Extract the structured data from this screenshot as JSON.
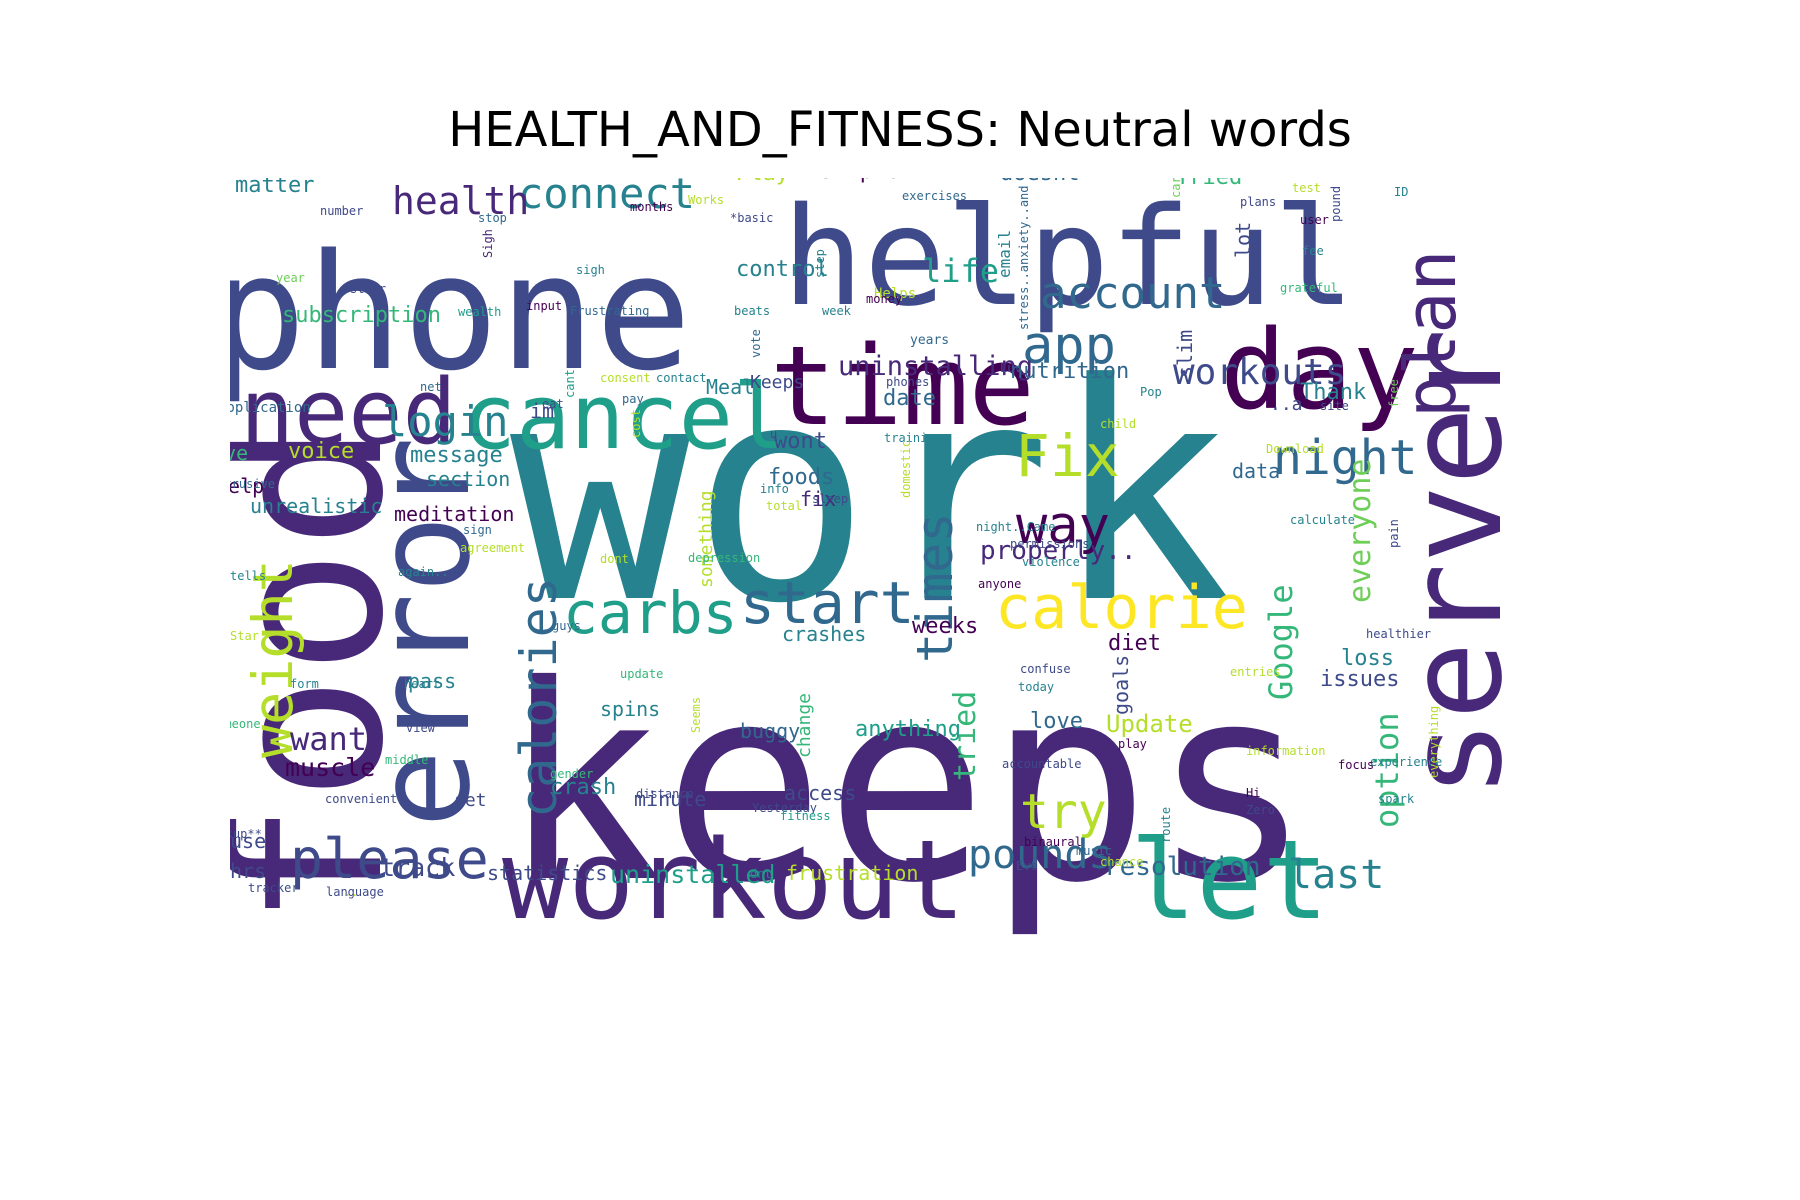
{
  "title": "HEALTH_AND_FITNESS: Neutral words",
  "colors": [
    "#440154",
    "#482878",
    "#3e4a89",
    "#31688e",
    "#26828e",
    "#1f9e89",
    "#35b779",
    "#6ece58",
    "#b5de2b",
    "#fde725"
  ],
  "words": [
    {
      "text": "work",
      "color": "#26828e"
    },
    {
      "text": "keeps",
      "color": "#482878"
    },
    {
      "text": "phone",
      "color": "#3e4a89"
    },
    {
      "text": "helpful",
      "color": "#3e4a89"
    },
    {
      "text": "food",
      "color": "#482878"
    },
    {
      "text": "error",
      "color": "#3e4a89"
    },
    {
      "text": "server",
      "color": "#482878"
    },
    {
      "text": "time",
      "color": "#440154"
    },
    {
      "text": "day",
      "color": "#440154"
    },
    {
      "text": "workout",
      "color": "#482878"
    },
    {
      "text": "need",
      "color": "#482878"
    },
    {
      "text": "cancel",
      "color": "#1f9e89"
    },
    {
      "text": "let",
      "color": "#1f9e89"
    },
    {
      "text": "plan",
      "color": "#482878"
    },
    {
      "text": "calorie",
      "color": "#fde725"
    },
    {
      "text": "carbs",
      "color": "#1f9e89"
    },
    {
      "text": "start",
      "color": "#31688e"
    },
    {
      "text": "weight",
      "color": "#b5de2b"
    },
    {
      "text": "please",
      "color": "#3e4a89"
    },
    {
      "text": "calories",
      "color": "#31688e"
    },
    {
      "text": "times",
      "color": "#31688e"
    },
    {
      "text": "Fix",
      "color": "#b5de2b"
    },
    {
      "text": "way",
      "color": "#440154"
    },
    {
      "text": "app",
      "color": "#31688e"
    },
    {
      "text": "account",
      "color": "#31688e"
    },
    {
      "text": "try",
      "color": "#b5de2b"
    },
    {
      "text": "night",
      "color": "#31688e"
    },
    {
      "text": "login",
      "color": "#26828e"
    },
    {
      "text": "connect",
      "color": "#26828e"
    },
    {
      "text": "health",
      "color": "#482878"
    },
    {
      "text": "workouts",
      "color": "#3e4a89"
    },
    {
      "text": "pounds",
      "color": "#31688e"
    },
    {
      "text": "last",
      "color": "#26828e"
    },
    {
      "text": "Google",
      "color": "#35b779"
    },
    {
      "text": "option",
      "color": "#35b779"
    },
    {
      "text": "everyone",
      "color": "#6ece58"
    },
    {
      "text": "tried",
      "color": "#35b779"
    },
    {
      "text": "life",
      "color": "#1f9e89"
    },
    {
      "text": "want",
      "color": "#482878"
    },
    {
      "text": "uninstalling",
      "color": "#482878"
    },
    {
      "text": "properly..",
      "color": "#482878"
    },
    {
      "text": "resolution",
      "color": "#31688e"
    },
    {
      "text": "uninstalled",
      "color": "#1f9e89"
    },
    {
      "text": "muscle",
      "color": "#440154"
    },
    {
      "text": "Update",
      "color": "#b5de2b"
    },
    {
      "text": "track",
      "color": "#3e4a89"
    },
    {
      "text": "subscription",
      "color": "#35b779"
    },
    {
      "text": "nutrition",
      "color": "#31688e"
    },
    {
      "text": "Thank",
      "color": "#26828e"
    },
    {
      "text": "crash",
      "color": "#26828e"
    },
    {
      "text": "statistics",
      "color": "#3e4a89"
    },
    {
      "text": "frustration",
      "color": "#b5de2b"
    },
    {
      "text": "goals",
      "color": "#3e4a89"
    },
    {
      "text": "loss",
      "color": "#26828e"
    },
    {
      "text": "issues",
      "color": "#3e4a89"
    },
    {
      "text": "data",
      "color": "#31688e"
    },
    {
      "text": "date",
      "color": "#31688e"
    },
    {
      "text": "Meal",
      "color": "#26828e"
    },
    {
      "text": "control",
      "color": "#26828e"
    },
    {
      "text": "simple",
      "color": "#440154"
    },
    {
      "text": "doesnt",
      "color": "#31688e"
    },
    {
      "text": "Tried",
      "color": "#35b779"
    },
    {
      "text": "Play",
      "color": "#b5de2b"
    },
    {
      "text": "matter",
      "color": "#26828e"
    },
    {
      "text": "message",
      "color": "#26828e"
    },
    {
      "text": "section",
      "color": "#26828e"
    },
    {
      "text": "voice",
      "color": "#b5de2b"
    },
    {
      "text": "meditation",
      "color": "#440154"
    },
    {
      "text": "unrealistic",
      "color": "#26828e"
    },
    {
      "text": "crashes",
      "color": "#26828e"
    },
    {
      "text": "weeks",
      "color": "#440154"
    },
    {
      "text": "diet",
      "color": "#440154"
    },
    {
      "text": "foods",
      "color": "#31688e"
    },
    {
      "text": "wont",
      "color": "#3e4a89"
    },
    {
      "text": "fix",
      "color": "#482878"
    },
    {
      "text": "anything",
      "color": "#1f9e89"
    },
    {
      "text": "love",
      "color": "#31688e"
    },
    {
      "text": "buggy",
      "color": "#31688e"
    },
    {
      "text": "spins",
      "color": "#26828e"
    },
    {
      "text": "pass",
      "color": "#26828e"
    },
    {
      "text": "access",
      "color": "#3e4a89"
    },
    {
      "text": "minute",
      "color": "#3e4a89"
    },
    {
      "text": "set",
      "color": "#3e4a89"
    },
    {
      "text": "use",
      "color": "#3e4a89"
    },
    {
      "text": "hrs",
      "color": "#3e4a89"
    },
    {
      "text": "save",
      "color": "#35b779"
    },
    {
      "text": "help",
      "color": "#440154"
    },
    {
      "text": "Please",
      "color": "#1f9e89"
    },
    {
      "text": "lot",
      "color": "#3e4a89"
    },
    {
      "text": "slim",
      "color": "#3e4a89"
    },
    {
      "text": "im",
      "color": "#3e4a89"
    },
    {
      "text": "Keeps",
      "color": "#3e4a89"
    },
    {
      "text": "change",
      "color": "#35b779"
    },
    {
      "text": "something",
      "color": "#b5de2b"
    },
    {
      "text": "email",
      "color": "#26828e"
    },
    {
      "text": "application",
      "color": "#31688e"
    },
    {
      "text": "Helps",
      "color": "#b5de2b"
    },
    {
      "text": "week",
      "color": "#26828e"
    },
    {
      "text": "years",
      "color": "#31688e"
    },
    {
      "text": "..a",
      "color": "#3e4a89"
    },
    {
      "text": "Help",
      "color": "#35b779"
    },
    {
      "text": "number",
      "color": "#3e4a89"
    },
    {
      "text": "stop",
      "color": "#31688e"
    },
    {
      "text": "year",
      "color": "#6ece58"
    },
    {
      "text": "starr",
      "color": "#3e4a89"
    },
    {
      "text": "Sigh",
      "color": "#482878"
    },
    {
      "text": "sigh",
      "color": "#26828e"
    },
    {
      "text": "months",
      "color": "#440154"
    },
    {
      "text": "Works",
      "color": "#b5de2b"
    },
    {
      "text": "*basic",
      "color": "#3e4a89"
    },
    {
      "text": "exercises",
      "color": "#31688e"
    },
    {
      "text": "stress..anxiety..and",
      "color": "#31688e"
    },
    {
      "text": "card",
      "color": "#6ece58"
    },
    {
      "text": "test",
      "color": "#b5de2b"
    },
    {
      "text": "plans",
      "color": "#3e4a89"
    },
    {
      "text": "user",
      "color": "#440154"
    },
    {
      "text": "pound",
      "color": "#3e4a89"
    },
    {
      "text": "ID",
      "color": "#26828e"
    },
    {
      "text": "fee",
      "color": "#26828e"
    },
    {
      "text": "grateful",
      "color": "#35b779"
    },
    {
      "text": "site",
      "color": "#3e4a89"
    },
    {
      "text": "Pop",
      "color": "#26828e"
    },
    {
      "text": "Luv",
      "color": "#3e4a89"
    },
    {
      "text": "money",
      "color": "#440154"
    },
    {
      "text": "step",
      "color": "#26828e"
    },
    {
      "text": "wealth",
      "color": "#1f9e89"
    },
    {
      "text": "input",
      "color": "#440154"
    },
    {
      "text": "Frustrating",
      "color": "#31688e"
    },
    {
      "text": "beats",
      "color": "#26828e"
    },
    {
      "text": "vote",
      "color": "#31688e"
    },
    {
      "text": "net",
      "color": "#31688e"
    },
    {
      "text": "consent",
      "color": "#b5de2b"
    },
    {
      "text": "contact",
      "color": "#26828e"
    },
    {
      "text": "phones",
      "color": "#3e4a89"
    },
    {
      "text": "cant",
      "color": "#1f9e89"
    },
    {
      "text": "eat",
      "color": "#3e4a89"
    },
    {
      "text": "pay",
      "color": "#31688e"
    },
    {
      "text": "free",
      "color": "#6ece58"
    },
    {
      "text": "child",
      "color": "#b5de2b"
    },
    {
      "text": "u",
      "color": "#3e4a89"
    },
    {
      "text": "training",
      "color": "#26828e"
    },
    {
      "text": "Download",
      "color": "#b5de2b"
    },
    {
      "text": "cost",
      "color": "#b5de2b"
    },
    {
      "text": "Intrusive",
      "color": "#31688e"
    },
    {
      "text": "info",
      "color": "#26828e"
    },
    {
      "text": "sleep",
      "color": "#3e4a89"
    },
    {
      "text": "domestic",
      "color": "#b5de2b"
    },
    {
      "text": "total",
      "color": "#b5de2b"
    },
    {
      "text": "sign",
      "color": "#31688e"
    },
    {
      "text": "agreement",
      "color": "#b5de2b"
    },
    {
      "text": "depression",
      "color": "#35b779"
    },
    {
      "text": "dont",
      "color": "#b5de2b"
    },
    {
      "text": "night..Came",
      "color": "#26828e"
    },
    {
      "text": "permissions",
      "color": "#3e4a89"
    },
    {
      "text": "violence",
      "color": "#26828e"
    },
    {
      "text": "anyone",
      "color": "#440154"
    },
    {
      "text": "calculate",
      "color": "#26828e"
    },
    {
      "text": "pain",
      "color": "#3e4a89"
    },
    {
      "text": "tells",
      "color": "#26828e"
    },
    {
      "text": "again..",
      "color": "#26828e"
    },
    {
      "text": "Star",
      "color": "#b5de2b"
    },
    {
      "text": "guys",
      "color": "#31688e"
    },
    {
      "text": "healthier",
      "color": "#3e4a89"
    },
    {
      "text": "update",
      "color": "#35b779"
    },
    {
      "text": "confuse",
      "color": "#3e4a89"
    },
    {
      "text": "today",
      "color": "#26828e"
    },
    {
      "text": "entries",
      "color": "#b5de2b"
    },
    {
      "text": "form",
      "color": "#26828e"
    },
    {
      "text": "heart",
      "color": "#26828e"
    },
    {
      "text": "Seems",
      "color": "#b5de2b"
    },
    {
      "text": "someone",
      "color": "#35b779"
    },
    {
      "text": "view",
      "color": "#3e4a89"
    },
    {
      "text": "play",
      "color": "#440154"
    },
    {
      "text": "information",
      "color": "#b5de2b"
    },
    {
      "text": "experience",
      "color": "#26828e"
    },
    {
      "text": "everything",
      "color": "#b5de2b"
    },
    {
      "text": "May",
      "color": "#35b779"
    },
    {
      "text": "middle",
      "color": "#35b779"
    },
    {
      "text": "accountable",
      "color": "#3e4a89"
    },
    {
      "text": "gender",
      "color": "#35b779"
    },
    {
      "text": "focus",
      "color": "#440154"
    },
    {
      "text": "distance",
      "color": "#3e4a89"
    },
    {
      "text": "Hi",
      "color": "#440154"
    },
    {
      "text": "convenient",
      "color": "#3e4a89"
    },
    {
      "text": "Yesterday",
      "color": "#3e4a89"
    },
    {
      "text": "fitness",
      "color": "#1f9e89"
    },
    {
      "text": "Zero",
      "color": "#3e4a89"
    },
    {
      "text": "spark",
      "color": "#26828e"
    },
    {
      "text": "lookup**",
      "color": "#3e4a89"
    },
    {
      "text": "binaural",
      "color": "#440154"
    },
    {
      "text": "route",
      "color": "#26828e"
    },
    {
      "text": "chance",
      "color": "#b5de2b"
    },
    {
      "text": "music",
      "color": "#31688e"
    },
    {
      "text": "Eve",
      "color": "#3e4a89"
    },
    {
      "text": "dnt",
      "color": "#26828e"
    },
    {
      "text": "God",
      "color": "#440154"
    },
    {
      "text": "tracker",
      "color": "#3e4a89"
    },
    {
      "text": "language",
      "color": "#3e4a89"
    },
    {
      "text": "..",
      "color": "#b5de2b"
    }
  ]
}
